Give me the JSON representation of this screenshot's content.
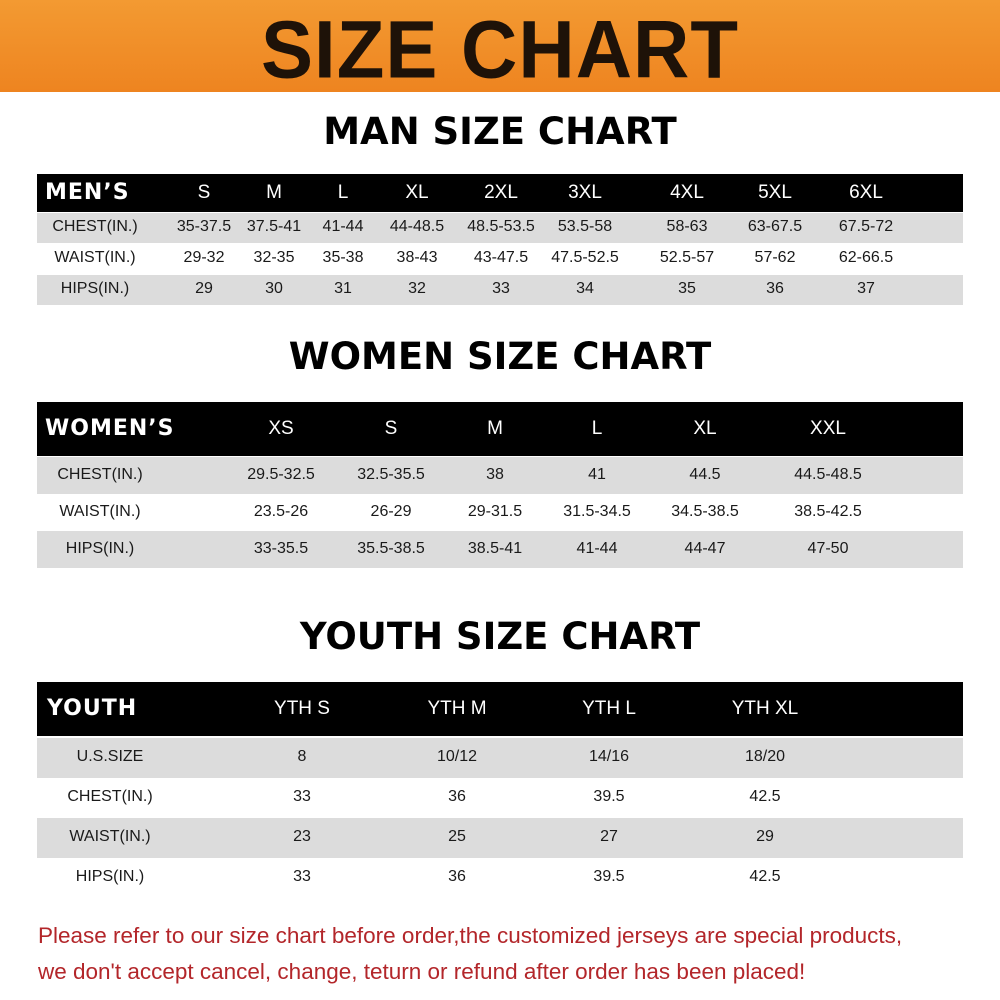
{
  "title": "SIZE CHART",
  "men": {
    "title": "MAN SIZE CHART",
    "header": "MEN’S",
    "sizes": [
      "S",
      "M",
      "L",
      "XL",
      "2XL",
      "3XL",
      "4XL",
      "5XL",
      "6XL"
    ],
    "rows": [
      {
        "label": "CHEST(IN.)",
        "values": [
          "35-37.5",
          "37.5-41",
          "41-44",
          "44-48.5",
          "48.5-53.5",
          "53.5-58",
          "58-63",
          "63-67.5",
          "67.5-72"
        ]
      },
      {
        "label": "WAIST(IN.)",
        "values": [
          "29-32",
          "32-35",
          "35-38",
          "38-43",
          "43-47.5",
          "47.5-52.5",
          "52.5-57",
          "57-62",
          "62-66.5"
        ]
      },
      {
        "label": "HIPS(IN.)",
        "values": [
          "29",
          "30",
          "31",
          "32",
          "33",
          "34",
          "35",
          "36",
          "37"
        ]
      }
    ]
  },
  "women": {
    "title": "WOMEN SIZE CHART",
    "header": "WOMEN’S",
    "sizes": [
      "XS",
      "S",
      "M",
      "L",
      "XL",
      "XXL"
    ],
    "rows": [
      {
        "label": "CHEST(IN.)",
        "values": [
          "29.5-32.5",
          "32.5-35.5",
          "38",
          "41",
          "44.5",
          "44.5-48.5"
        ]
      },
      {
        "label": "WAIST(IN.)",
        "values": [
          "23.5-26",
          "26-29",
          "29-31.5",
          "31.5-34.5",
          "34.5-38.5",
          "38.5-42.5"
        ]
      },
      {
        "label": "HIPS(IN.)",
        "values": [
          "33-35.5",
          "35.5-38.5",
          "38.5-41",
          "41-44",
          "44-47",
          "47-50"
        ]
      }
    ]
  },
  "youth": {
    "title": "YOUTH SIZE CHART",
    "header": "YOUTH",
    "sizes": [
      "YTH S",
      "YTH M",
      "YTH L",
      "YTH XL"
    ],
    "rows": [
      {
        "label": "U.S.SIZE",
        "values": [
          "8",
          "10/12",
          "14/16",
          "18/20"
        ]
      },
      {
        "label": "CHEST(IN.)",
        "values": [
          "33",
          "36",
          "39.5",
          "42.5"
        ]
      },
      {
        "label": "WAIST(IN.)",
        "values": [
          "23",
          "25",
          "27",
          "29"
        ]
      },
      {
        "label": "HIPS(IN.)",
        "values": [
          "33",
          "36",
          "39.5",
          "42.5"
        ]
      }
    ]
  },
  "footer": {
    "line1": "Please refer to our size chart before order,the customized jerseys are special products,",
    "line2": "we don't accept cancel, change, teturn or refund after order has been placed!"
  }
}
